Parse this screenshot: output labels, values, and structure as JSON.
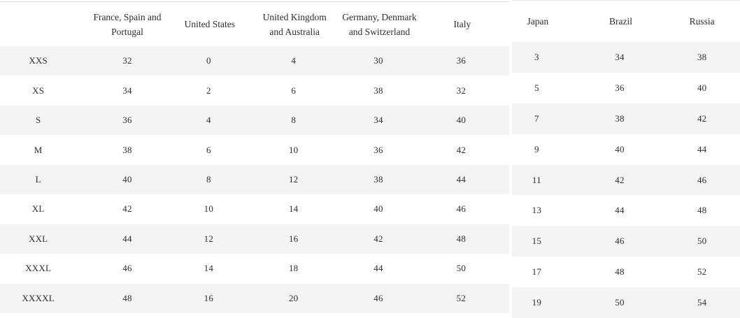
{
  "size_chart": {
    "left_table": {
      "headers": [
        "",
        "France, Spain and Portugal",
        "United States",
        "United Kingdom and Australia",
        "Germany, Denmark and Switzerland",
        "Italy"
      ],
      "rows": [
        [
          "XXS",
          "32",
          "0",
          "4",
          "30",
          "36"
        ],
        [
          "XS",
          "34",
          "2",
          "6",
          "38",
          "32"
        ],
        [
          "S",
          "36",
          "4",
          "8",
          "34",
          "40"
        ],
        [
          "M",
          "38",
          "6",
          "10",
          "36",
          "42"
        ],
        [
          "L",
          "40",
          "8",
          "12",
          "38",
          "44"
        ],
        [
          "XL",
          "42",
          "10",
          "14",
          "40",
          "46"
        ],
        [
          "XXL",
          "44",
          "12",
          "16",
          "42",
          "48"
        ],
        [
          "XXXL",
          "46",
          "14",
          "18",
          "44",
          "50"
        ],
        [
          "XXXXL",
          "48",
          "16",
          "20",
          "46",
          "52"
        ]
      ]
    },
    "right_table": {
      "headers": [
        "Japan",
        "Brazil",
        "Russia"
      ],
      "rows": [
        [
          "3",
          "34",
          "38"
        ],
        [
          "5",
          "36",
          "40"
        ],
        [
          "7",
          "38",
          "42"
        ],
        [
          "9",
          "40",
          "44"
        ],
        [
          "11",
          "42",
          "46"
        ],
        [
          "13",
          "44",
          "48"
        ],
        [
          "15",
          "46",
          "50"
        ],
        [
          "17",
          "48",
          "52"
        ],
        [
          "19",
          "50",
          "54"
        ]
      ]
    },
    "colors": {
      "stripe": "#f4f4f4",
      "text": "#2e2e2e",
      "border_top": "#dfdfdf",
      "background": "#ffffff"
    }
  }
}
